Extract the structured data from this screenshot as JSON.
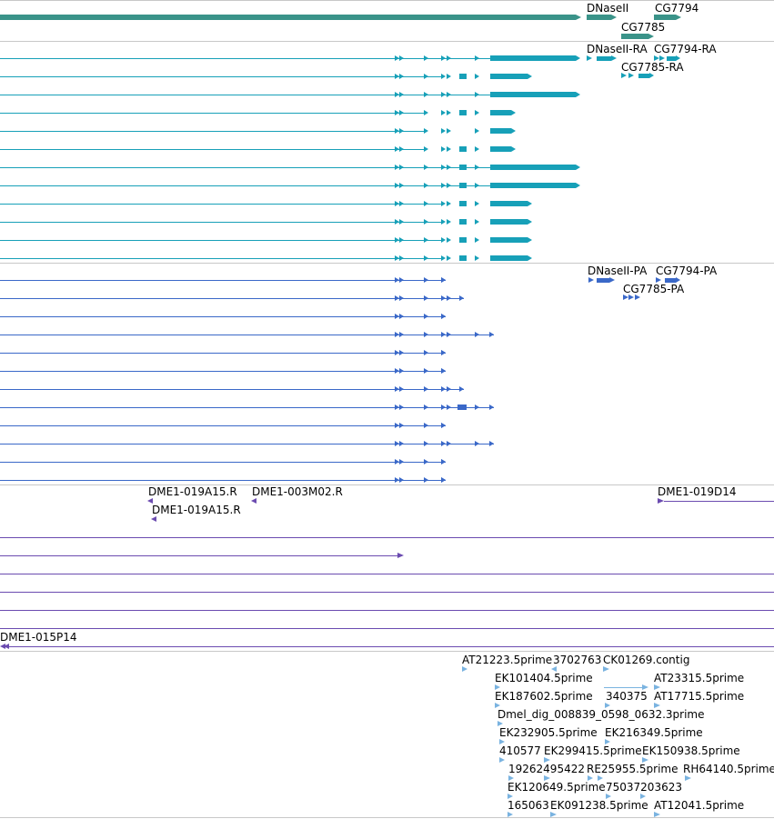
{
  "colors": {
    "gene": "#3a9389",
    "mrna": "#17a0b8",
    "cds": "#3a68c8",
    "clone": "#6b4bb0",
    "est": "#7ab3e0",
    "divider": "#c8c8c8"
  },
  "tracks": {
    "genes": {
      "labels": [
        "DNaseII",
        "CG7794",
        "CG7785"
      ]
    },
    "mrna": {
      "labels": [
        "DNaseII-RA",
        "CG7794-RA",
        "CG7785-RA"
      ],
      "row_count": 12
    },
    "cds": {
      "labels": [
        "DNaseII-PA",
        "CG7794-PA",
        "CG7785-PA"
      ],
      "row_count": 12
    },
    "clones": {
      "labels": [
        "DME1-019A15.R",
        "DME1-003M02.R",
        "DME1-019A15.R",
        "DME1-019D14",
        "DME1-015P14"
      ]
    },
    "ests": {
      "labels": [
        "AT21223.5prime",
        "3702763",
        "CK01269.contig",
        "EK101404.5prime",
        "AT23315.5prime",
        "EK187602.5prime",
        "340375",
        "AT17715.5prime",
        "Dmel_dig_008839_0598_0632.3prime",
        "EK232905.5prime",
        "EK216349.5prime",
        "410577",
        "EK299415.5prime",
        "EK150938.5prime",
        "19262495422",
        "RE25955.5prime",
        "RH64140.5prime",
        "EK120649.5prime",
        "75037203623",
        "165063",
        "EK091238.5prime",
        "AT12041.5prime"
      ]
    }
  }
}
